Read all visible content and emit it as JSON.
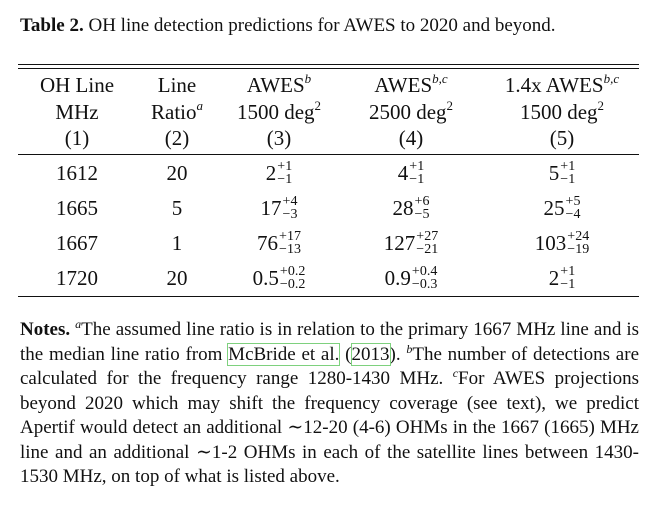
{
  "caption": {
    "label": "Table 2.",
    "text": "OH line detection predictions for AWES to 2020 and beyond."
  },
  "headers": [
    {
      "l1": "OH Line",
      "l1_sup": "",
      "l2": "MHz",
      "l2_sup": "",
      "l2_tail": "",
      "l3": "(1)"
    },
    {
      "l1": "Line",
      "l1_sup": "",
      "l2": "Ratio",
      "l2_sup": "a",
      "l2_tail": "",
      "l3": "(2)"
    },
    {
      "l1": "AWES",
      "l1_sup": "b",
      "l2": "1500 deg",
      "l2_sup": "2",
      "l2_tail": "",
      "l3": "(3)"
    },
    {
      "l1": "AWES",
      "l1_sup": "b,c",
      "l2": "2500 deg",
      "l2_sup": "2",
      "l2_tail": "",
      "l3": "(4)"
    },
    {
      "l1": "1.4x AWES",
      "l1_sup": "b,c",
      "l2": "1500 deg",
      "l2_sup": "2",
      "l2_tail": "",
      "l3": "(5)"
    }
  ],
  "rows": [
    {
      "freq": "1612",
      "ratio": "20",
      "awes1500": {
        "v": "2",
        "up": "+1",
        "lo": "−1"
      },
      "awes2500": {
        "v": "4",
        "up": "+1",
        "lo": "−1"
      },
      "awes14": {
        "v": "5",
        "up": "+1",
        "lo": "−1"
      }
    },
    {
      "freq": "1665",
      "ratio": "5",
      "awes1500": {
        "v": "17",
        "up": "+4",
        "lo": "−3"
      },
      "awes2500": {
        "v": "28",
        "up": "+6",
        "lo": "−5"
      },
      "awes14": {
        "v": "25",
        "up": "+5",
        "lo": "−4"
      }
    },
    {
      "freq": "1667",
      "ratio": "1",
      "awes1500": {
        "v": "76",
        "up": "+17",
        "lo": "−13"
      },
      "awes2500": {
        "v": "127",
        "up": "+27",
        "lo": "−21"
      },
      "awes14": {
        "v": "103",
        "up": "+24",
        "lo": "−19"
      }
    },
    {
      "freq": "1720",
      "ratio": "20",
      "awes1500": {
        "v": "0.5",
        "up": "+0.2",
        "lo": "−0.2"
      },
      "awes2500": {
        "v": "0.9",
        "up": "+0.4",
        "lo": "−0.3"
      },
      "awes14": {
        "v": "2",
        "up": "+1",
        "lo": "−1"
      }
    }
  ],
  "notes": {
    "label": "Notes.",
    "a_mark": "a",
    "a_text_1": "The assumed line ratio is in relation to the primary 1667 MHz line and is the median line ratio from ",
    "a_cite": "McBride et al.",
    "a_text_2": " (",
    "a_year": "2013",
    "a_text_3": "). ",
    "b_mark": "b",
    "b_text": "The number of detections are calculated for the frequency range 1280-1430 MHz. ",
    "c_mark": "c",
    "c_text": "For AWES projections beyond 2020 which may shift the frequency coverage (see text), we predict Apertif would detect an additional ∼12-20 (4-6) OHMs in the 1667 (1665) MHz line and an additional ∼1-2 OHMs in each of the satellite lines between 1430-1530 MHz, on top of what is listed above."
  }
}
